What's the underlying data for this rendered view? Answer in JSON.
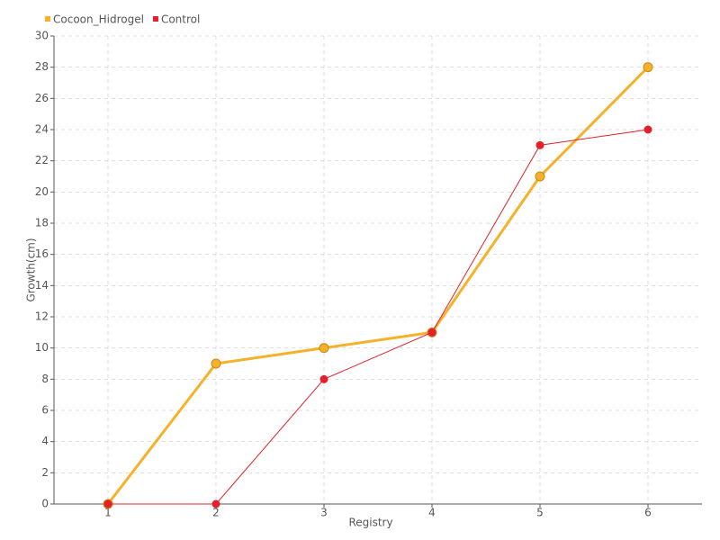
{
  "chart_data": {
    "type": "line",
    "x": [
      1,
      2,
      3,
      4,
      5,
      6
    ],
    "xlim": [
      0.5,
      6.5
    ],
    "xticks": [
      1,
      2,
      3,
      4,
      5,
      6
    ],
    "ylim": [
      0,
      30
    ],
    "yticks": [
      0,
      2,
      4,
      6,
      8,
      10,
      12,
      14,
      16,
      18,
      20,
      22,
      24,
      26,
      28,
      30
    ],
    "x_label": "Registry",
    "y_label": "Growth(cm)",
    "grid": true,
    "legend": "top-left",
    "series": [
      {
        "name": "Cocoon_Hidrogel",
        "color": "#f5b12a",
        "values": [
          0,
          9,
          10,
          11,
          21,
          28
        ]
      },
      {
        "name": "Control",
        "color": "#e3202b",
        "values": [
          0,
          0,
          8,
          11,
          23,
          24
        ]
      }
    ]
  }
}
